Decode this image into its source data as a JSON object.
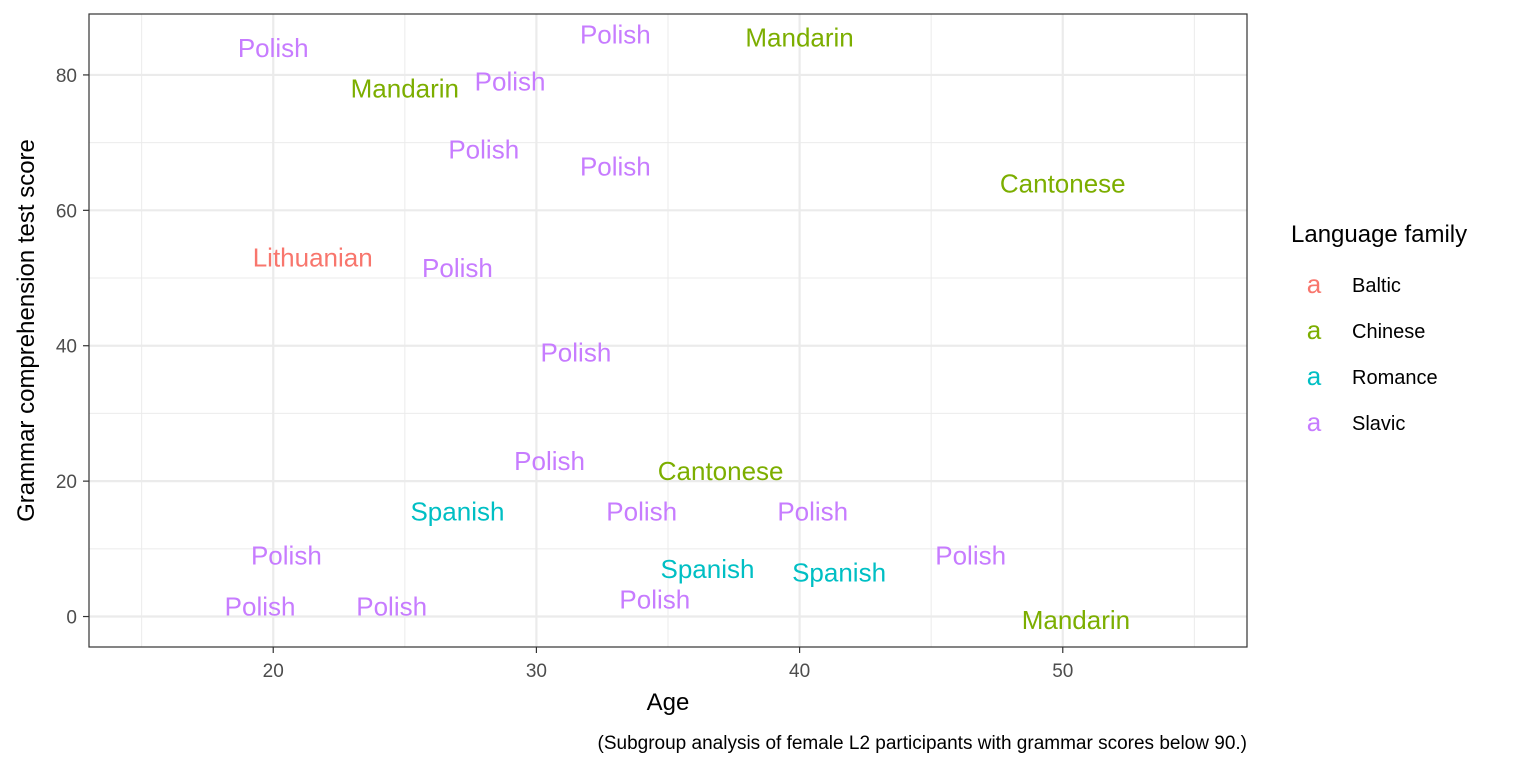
{
  "chart_data": {
    "type": "scatter",
    "xlabel": "Age",
    "ylabel": "Grammar comprehension test score",
    "caption": "(Subgroup analysis of female L2 participants with grammar scores below 90.)",
    "xlim": [
      13,
      57
    ],
    "ylim": [
      -4.5,
      89
    ],
    "x_major_ticks": [
      20,
      30,
      40,
      50
    ],
    "x_minor_ticks": [
      15,
      25,
      35,
      45,
      55
    ],
    "y_major_ticks": [
      0,
      20,
      40,
      60,
      80
    ],
    "y_minor_ticks": [
      10,
      30,
      50,
      70
    ],
    "x_tick_labels": [
      "20",
      "30",
      "40",
      "50"
    ],
    "y_tick_labels": [
      "0",
      "20",
      "40",
      "60",
      "80"
    ],
    "grid": true,
    "legend": {
      "title": "Language family",
      "placement": "right",
      "key_glyph": "a",
      "items": [
        {
          "label": "Baltic",
          "color": "#F8766D"
        },
        {
          "label": "Chinese",
          "color": "#7CAE00"
        },
        {
          "label": "Romance",
          "color": "#00BFC4"
        },
        {
          "label": "Slavic",
          "color": "#C77CFF"
        }
      ]
    },
    "points": [
      {
        "x": 20,
        "y": 84,
        "label": "Polish",
        "family": "Slavic"
      },
      {
        "x": 25,
        "y": 78,
        "label": "Mandarin",
        "family": "Chinese"
      },
      {
        "x": 29,
        "y": 79,
        "label": "Polish",
        "family": "Slavic"
      },
      {
        "x": 33,
        "y": 86,
        "label": "Polish",
        "family": "Slavic"
      },
      {
        "x": 40,
        "y": 85.5,
        "label": "Mandarin",
        "family": "Chinese"
      },
      {
        "x": 28,
        "y": 69,
        "label": "Polish",
        "family": "Slavic"
      },
      {
        "x": 33,
        "y": 66.5,
        "label": "Polish",
        "family": "Slavic"
      },
      {
        "x": 50,
        "y": 64,
        "label": "Cantonese",
        "family": "Chinese"
      },
      {
        "x": 21.5,
        "y": 53,
        "label": "Lithuanian",
        "family": "Baltic"
      },
      {
        "x": 27,
        "y": 51.5,
        "label": "Polish",
        "family": "Slavic"
      },
      {
        "x": 31.5,
        "y": 39,
        "label": "Polish",
        "family": "Slavic"
      },
      {
        "x": 30.5,
        "y": 23,
        "label": "Polish",
        "family": "Slavic"
      },
      {
        "x": 37,
        "y": 21.5,
        "label": "Cantonese",
        "family": "Chinese"
      },
      {
        "x": 27,
        "y": 15.5,
        "label": "Spanish",
        "family": "Romance"
      },
      {
        "x": 34,
        "y": 15.5,
        "label": "Polish",
        "family": "Slavic"
      },
      {
        "x": 40.5,
        "y": 15.5,
        "label": "Polish",
        "family": "Slavic"
      },
      {
        "x": 20.5,
        "y": 9,
        "label": "Polish",
        "family": "Slavic"
      },
      {
        "x": 36.5,
        "y": 7,
        "label": "Spanish",
        "family": "Romance"
      },
      {
        "x": 41.5,
        "y": 6.5,
        "label": "Spanish",
        "family": "Romance"
      },
      {
        "x": 46.5,
        "y": 9,
        "label": "Polish",
        "family": "Slavic"
      },
      {
        "x": 19.5,
        "y": 1.5,
        "label": "Polish",
        "family": "Slavic"
      },
      {
        "x": 24.5,
        "y": 1.5,
        "label": "Polish",
        "family": "Slavic"
      },
      {
        "x": 34.5,
        "y": 2.5,
        "label": "Polish",
        "family": "Slavic"
      },
      {
        "x": 50.5,
        "y": -0.5,
        "label": "Mandarin",
        "family": "Chinese"
      }
    ]
  }
}
